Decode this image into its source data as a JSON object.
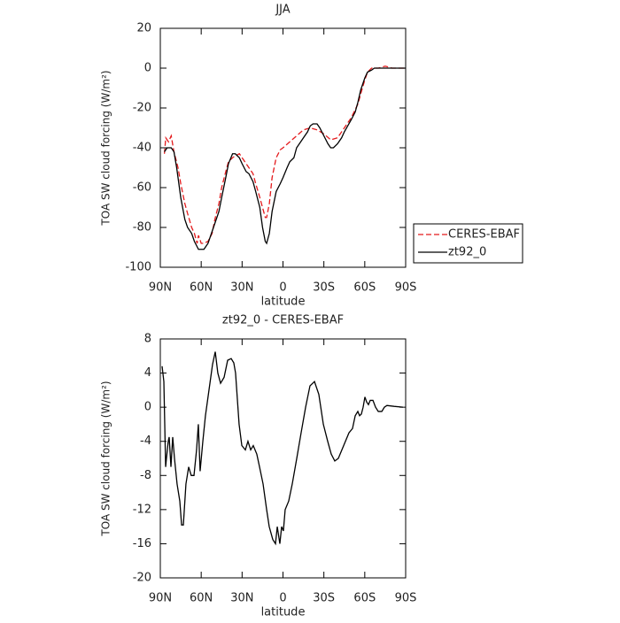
{
  "chart_data": [
    {
      "type": "line",
      "title": "JJA",
      "xlabel": "latitude",
      "ylabel": "TOA SW cloud forcing (W/m²)",
      "xlim": [
        90,
        -90
      ],
      "xticks": [
        {
          "value": 90,
          "label": "90N"
        },
        {
          "value": 60,
          "label": "60N"
        },
        {
          "value": 30,
          "label": "30N"
        },
        0,
        {
          "value": -30,
          "label": "30S"
        },
        {
          "value": -60,
          "label": "60S"
        },
        {
          "value": -90,
          "label": "90S"
        }
      ],
      "ylim": [
        -100,
        20
      ],
      "yticks": [
        -100,
        -80,
        -60,
        -40,
        -20,
        0,
        20
      ],
      "legend": "right",
      "series": [
        {
          "name": "CERES-EBAF",
          "color": "#e41a1c",
          "dash": true,
          "x": [
            87,
            86,
            84,
            82,
            80,
            77,
            75,
            72,
            70,
            67,
            65,
            63,
            62,
            60,
            58,
            55,
            52,
            50,
            47,
            45,
            42,
            40,
            37,
            35,
            32,
            30,
            27,
            25,
            22,
            20,
            17,
            15,
            13,
            12,
            10,
            8,
            5,
            2,
            0,
            -5,
            -10,
            -15,
            -20,
            -25,
            -30,
            -35,
            -40,
            -45,
            -50,
            -55,
            -57,
            -60,
            -62,
            -65,
            -70,
            -75,
            -80,
            -90
          ],
          "values": [
            -43,
            -35,
            -37,
            -34,
            -42,
            -50,
            -58,
            -68,
            -73,
            -80,
            -83,
            -88,
            -84,
            -88,
            -88,
            -87,
            -83,
            -76,
            -68,
            -60,
            -52,
            -47,
            -45,
            -44,
            -43,
            -45,
            -48,
            -50,
            -53,
            -58,
            -65,
            -70,
            -75,
            -75,
            -68,
            -55,
            -45,
            -41,
            -40,
            -37,
            -34,
            -31,
            -30,
            -31,
            -33,
            -36,
            -35,
            -30,
            -25,
            -18,
            -13,
            -6,
            -2,
            0,
            0,
            1,
            0,
            0
          ]
        },
        {
          "name": "zt92_0",
          "color": "#000000",
          "dash": false,
          "x": [
            87,
            85,
            82,
            80,
            78,
            75,
            72,
            70,
            67,
            65,
            62,
            60,
            58,
            55,
            52,
            50,
            47,
            45,
            42,
            40,
            37,
            35,
            32,
            30,
            27,
            25,
            22,
            20,
            17,
            15,
            13,
            12,
            10,
            8,
            5,
            2,
            0,
            -3,
            -5,
            -8,
            -10,
            -13,
            -15,
            -18,
            -20,
            -22,
            -25,
            -27,
            -30,
            -33,
            -35,
            -37,
            -40,
            -43,
            -45,
            -50,
            -53,
            -55,
            -57,
            -60,
            -62,
            -65,
            -67,
            -70,
            -90
          ],
          "values": [
            -42,
            -40,
            -40,
            -42,
            -50,
            -65,
            -76,
            -80,
            -83,
            -87,
            -91,
            -91,
            -91,
            -88,
            -82,
            -78,
            -72,
            -65,
            -55,
            -48,
            -43,
            -43,
            -45,
            -48,
            -52,
            -53,
            -57,
            -62,
            -70,
            -80,
            -87,
            -88,
            -83,
            -72,
            -62,
            -58,
            -55,
            -50,
            -47,
            -45,
            -40,
            -37,
            -35,
            -32,
            -29,
            -28,
            -28,
            -30,
            -34,
            -38,
            -40,
            -40,
            -38,
            -35,
            -32,
            -26,
            -22,
            -17,
            -11,
            -5,
            -2,
            -1,
            0,
            0,
            0
          ]
        }
      ]
    },
    {
      "type": "line",
      "title": "zt92_0 - CERES-EBAF",
      "xlabel": "latitude",
      "ylabel": "TOA SW cloud forcing (W/m²)",
      "xlim": [
        90,
        -90
      ],
      "xticks": [
        {
          "value": 90,
          "label": "90N"
        },
        {
          "value": 60,
          "label": "60N"
        },
        {
          "value": 30,
          "label": "30N"
        },
        0,
        {
          "value": -30,
          "label": "30S"
        },
        {
          "value": -60,
          "label": "60S"
        },
        {
          "value": -90,
          "label": "90S"
        }
      ],
      "ylim": [
        -20,
        8
      ],
      "yticks": [
        -20,
        -16,
        -12,
        -8,
        -4,
        0,
        4,
        8
      ],
      "series": [
        {
          "color": "#000000",
          "dash": false,
          "x": [
            88.7,
            87.4,
            86.1,
            85.5,
            84.2,
            83.5,
            82.2,
            80.9,
            79.6,
            77.7,
            75.7,
            74.4,
            73.1,
            71.2,
            69.2,
            67.3,
            65.3,
            63.4,
            62.1,
            60.8,
            58.8,
            56.9,
            54.3,
            51.7,
            49.7,
            47.8,
            45.8,
            43.2,
            40.6,
            38,
            36.1,
            34.8,
            33.5,
            32.2,
            30.2,
            27.6,
            25.7,
            23.7,
            21.8,
            19.2,
            17.2,
            14.6,
            12,
            10.1,
            7.5,
            5.5,
            4.2,
            2.3,
            1,
            -0.3,
            -1.6,
            -4.2,
            -6.8,
            -10.1,
            -13.3,
            -16.6,
            -19.8,
            -23.1,
            -26.3,
            -29.6,
            -32.8,
            -35.4,
            -38,
            -40.6,
            -43.2,
            -45.8,
            -48.4,
            -51,
            -53,
            -54.9,
            -56.2,
            -57.5,
            -58.8,
            -60.1,
            -61.4,
            -62.7,
            -64,
            -66,
            -67.9,
            -69.9,
            -72.5,
            -74.4,
            -76.3,
            -81.5,
            -88
          ],
          "values": [
            4.8,
            3,
            -7,
            -6,
            -4,
            -3.5,
            -7,
            -3.5,
            -6,
            -9,
            -11,
            -13.8,
            -13.8,
            -9,
            -7,
            -8,
            -8,
            -5,
            -2,
            -7.5,
            -4,
            -1,
            2,
            5,
            6.5,
            4,
            2.8,
            3.5,
            5.5,
            5.7,
            5.2,
            4,
            1,
            -2,
            -4.5,
            -5,
            -4,
            -5,
            -4.5,
            -5.5,
            -7,
            -9,
            -12,
            -14,
            -15.5,
            -16,
            -14,
            -16,
            -14,
            -14.5,
            -12,
            -11,
            -9,
            -6,
            -3,
            0,
            2.5,
            3,
            1.5,
            -2,
            -4,
            -5.5,
            -6.3,
            -6,
            -5,
            -4,
            -3,
            -2.5,
            -1,
            -0.5,
            -1,
            -0.8,
            0,
            1.2,
            0.6,
            0.3,
            0.8,
            0.8,
            0,
            -0.5,
            -0.5,
            0,
            0.2,
            0.1,
            0
          ]
        }
      ]
    }
  ]
}
